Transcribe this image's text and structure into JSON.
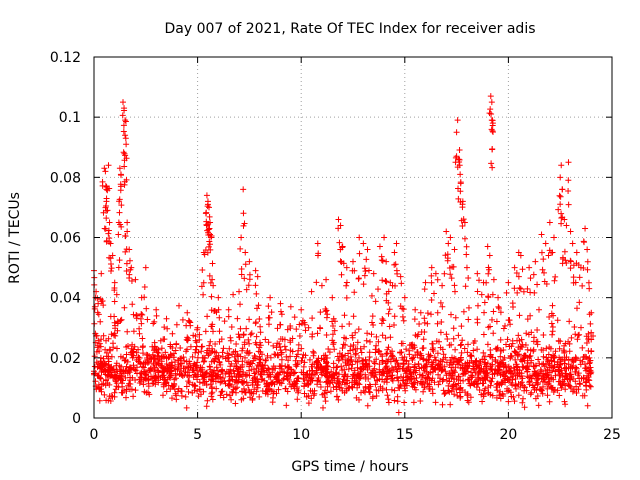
{
  "chart_data": {
    "type": "scatter",
    "title": "Day 007 of 2021, Rate Of TEC Index for receiver adis",
    "xlabel": "GPS time / hours",
    "ylabel": "ROTI / TECUs",
    "xlim": [
      0,
      25
    ],
    "ylim": [
      0,
      0.12
    ],
    "xticks": [
      0,
      5,
      10,
      15,
      20,
      25
    ],
    "xtick_labels": [
      "0",
      "5",
      "10",
      "15",
      "20",
      "25"
    ],
    "yticks": [
      0,
      0.02,
      0.04,
      0.06,
      0.08,
      0.1,
      0.12
    ],
    "ytick_labels": [
      "0",
      "0.02",
      "0.04",
      "0.06",
      "0.08",
      "0.1",
      "0.12"
    ],
    "grid": true,
    "marker": "plus",
    "marker_color": "#ff0000",
    "x_data_range": [
      0,
      24
    ],
    "baseline_range": [
      0.005,
      0.025
    ],
    "series": [
      {
        "name": "ROTI",
        "points": [
          [
            0.0,
            0.049
          ],
          [
            0.1,
            0.042
          ],
          [
            0.2,
            0.038
          ],
          [
            0.3,
            0.032
          ],
          [
            0.35,
            0.048
          ],
          [
            0.5,
            0.083
          ],
          [
            0.55,
            0.082
          ],
          [
            0.6,
            0.076
          ],
          [
            0.6,
            0.072
          ],
          [
            0.65,
            0.069
          ],
          [
            0.7,
            0.084
          ],
          [
            0.75,
            0.065
          ],
          [
            0.8,
            0.058
          ],
          [
            0.9,
            0.054
          ],
          [
            1.0,
            0.045
          ],
          [
            1.1,
            0.041
          ],
          [
            1.2,
            0.065
          ],
          [
            1.25,
            0.083
          ],
          [
            1.3,
            0.081
          ],
          [
            1.3,
            0.077
          ],
          [
            1.4,
            0.105
          ],
          [
            1.45,
            0.103
          ],
          [
            1.5,
            0.099
          ],
          [
            1.5,
            0.094
          ],
          [
            1.55,
            0.091
          ],
          [
            1.6,
            0.065
          ],
          [
            1.6,
            0.062
          ],
          [
            1.7,
            0.056
          ],
          [
            1.8,
            0.05
          ],
          [
            2.0,
            0.046
          ],
          [
            2.3,
            0.04
          ],
          [
            2.5,
            0.05
          ],
          [
            3.0,
            0.036
          ],
          [
            3.5,
            0.033
          ],
          [
            4.0,
            0.031
          ],
          [
            4.5,
            0.035
          ],
          [
            5.0,
            0.03
          ],
          [
            5.3,
            0.055
          ],
          [
            5.4,
            0.068
          ],
          [
            5.45,
            0.074
          ],
          [
            5.5,
            0.072
          ],
          [
            5.5,
            0.071
          ],
          [
            5.55,
            0.07
          ],
          [
            5.6,
            0.065
          ],
          [
            5.6,
            0.061
          ],
          [
            5.65,
            0.06
          ],
          [
            5.7,
            0.046
          ],
          [
            5.75,
            0.044
          ],
          [
            6.0,
            0.04
          ],
          [
            6.5,
            0.036
          ],
          [
            7.0,
            0.042
          ],
          [
            7.1,
            0.06
          ],
          [
            7.2,
            0.076
          ],
          [
            7.3,
            0.055
          ],
          [
            7.5,
            0.052
          ],
          [
            7.8,
            0.049
          ],
          [
            7.9,
            0.047
          ],
          [
            8.5,
            0.04
          ],
          [
            9.0,
            0.038
          ],
          [
            9.5,
            0.037
          ],
          [
            10.0,
            0.036
          ],
          [
            10.5,
            0.042
          ],
          [
            10.8,
            0.058
          ],
          [
            11.0,
            0.044
          ],
          [
            11.2,
            0.046
          ],
          [
            11.5,
            0.04
          ],
          [
            11.8,
            0.066
          ],
          [
            11.9,
            0.064
          ],
          [
            12.0,
            0.057
          ],
          [
            12.2,
            0.05
          ],
          [
            12.5,
            0.052
          ],
          [
            12.8,
            0.06
          ],
          [
            13.0,
            0.058
          ],
          [
            13.2,
            0.056
          ],
          [
            13.5,
            0.048
          ],
          [
            13.8,
            0.057
          ],
          [
            14.0,
            0.06
          ],
          [
            14.1,
            0.052
          ],
          [
            14.3,
            0.045
          ],
          [
            14.5,
            0.055
          ],
          [
            14.6,
            0.058
          ],
          [
            14.8,
            0.047
          ],
          [
            15.0,
            0.04
          ],
          [
            15.5,
            0.036
          ],
          [
            16.0,
            0.045
          ],
          [
            16.3,
            0.05
          ],
          [
            16.5,
            0.048
          ],
          [
            16.8,
            0.044
          ],
          [
            17.0,
            0.062
          ],
          [
            17.1,
            0.058
          ],
          [
            17.2,
            0.06
          ],
          [
            17.4,
            0.056
          ],
          [
            17.5,
            0.095
          ],
          [
            17.55,
            0.099
          ],
          [
            17.6,
            0.086
          ],
          [
            17.65,
            0.084
          ],
          [
            17.7,
            0.078
          ],
          [
            17.8,
            0.072
          ],
          [
            17.9,
            0.065
          ],
          [
            18.0,
            0.05
          ],
          [
            18.5,
            0.048
          ],
          [
            18.8,
            0.045
          ],
          [
            19.0,
            0.057
          ],
          [
            19.1,
            0.054
          ],
          [
            19.15,
            0.107
          ],
          [
            19.2,
            0.105
          ],
          [
            19.2,
            0.099
          ],
          [
            19.25,
            0.098
          ],
          [
            19.3,
            0.046
          ],
          [
            19.5,
            0.04
          ],
          [
            20.0,
            0.045
          ],
          [
            20.3,
            0.05
          ],
          [
            20.5,
            0.055
          ],
          [
            20.6,
            0.054
          ],
          [
            21.0,
            0.05
          ],
          [
            21.3,
            0.052
          ],
          [
            21.6,
            0.061
          ],
          [
            21.8,
            0.058
          ],
          [
            22.0,
            0.065
          ],
          [
            22.2,
            0.06
          ],
          [
            22.5,
            0.08
          ],
          [
            22.55,
            0.084
          ],
          [
            22.6,
            0.076
          ],
          [
            22.7,
            0.066
          ],
          [
            22.8,
            0.064
          ],
          [
            22.9,
            0.085
          ],
          [
            23.0,
            0.062
          ],
          [
            23.1,
            0.058
          ],
          [
            23.3,
            0.055
          ],
          [
            23.5,
            0.05
          ],
          [
            23.7,
            0.063
          ],
          [
            23.8,
            0.056
          ],
          [
            23.9,
            0.043
          ],
          [
            24.0,
            0.035
          ]
        ]
      }
    ]
  }
}
